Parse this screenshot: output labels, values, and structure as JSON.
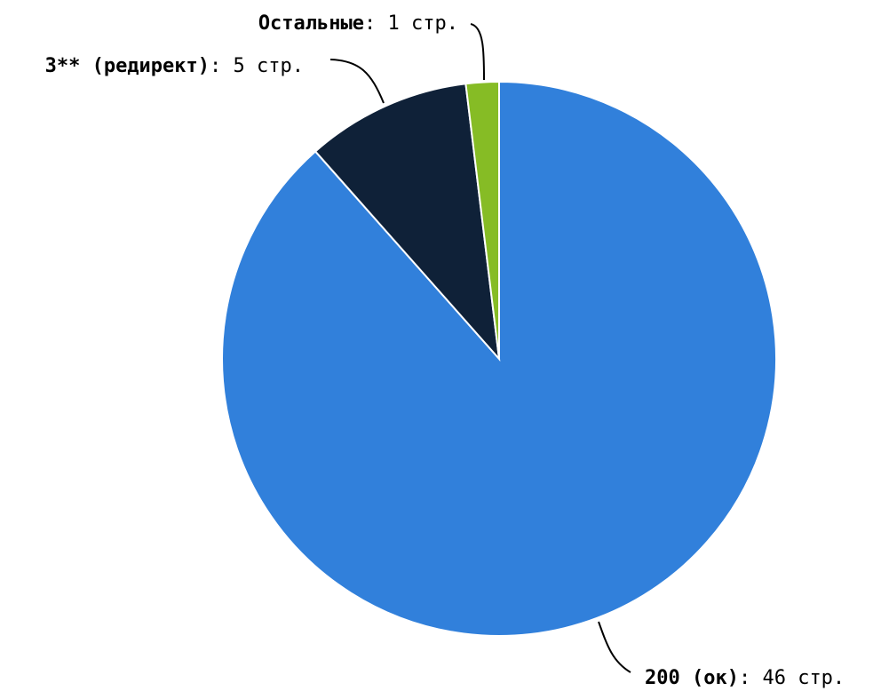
{
  "chart_data": {
    "type": "pie",
    "value_suffix": "стр.",
    "slices": [
      {
        "name": "200 (ок)",
        "value": 46,
        "color": "#3180db"
      },
      {
        "name": "3** (редирект)",
        "value": 5,
        "color": "#0f2138"
      },
      {
        "name": "Остальные",
        "value": 1,
        "color": "#86bc25"
      }
    ]
  }
}
